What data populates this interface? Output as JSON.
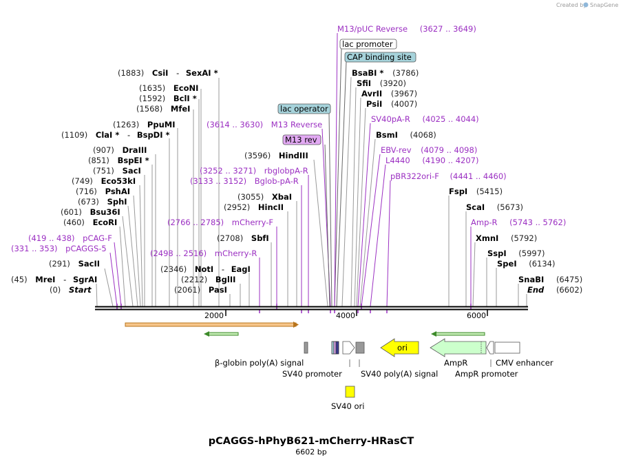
{
  "brand": {
    "created_by": "Created by",
    "name": "SnapGene"
  },
  "title": "pCAGGS-hPhyB621-mCherry-HRasCT",
  "length_label": "6602 bp",
  "colors": {
    "primer": "#9b2fc2",
    "enzyme": "#000000",
    "ori": "#ffff00",
    "ampr": "#ccffcc",
    "lac_operator": "#a6d3db",
    "cap_site": "#a6d3db",
    "m13rev_box": "#e2a9f3",
    "orf": "#f6c58a"
  },
  "ticks": [
    {
      "value": 2000,
      "label": "2000"
    },
    {
      "value": 4000,
      "label": "4000"
    },
    {
      "value": 6000,
      "label": "6000"
    }
  ],
  "left_labels": [
    {
      "pos": "(1883)",
      "name": "CsiI",
      "extra": "SexAI *"
    },
    {
      "pos": "(1635)",
      "name": "EcoNI"
    },
    {
      "pos": "(1592)",
      "name": "BclI *"
    },
    {
      "pos": "(1568)",
      "name": "MfeI"
    },
    {
      "pos": "(1263)",
      "name": "PpuMI"
    },
    {
      "pos": "(1109)",
      "name": "ClaI *",
      "extra": "BspDI *"
    },
    {
      "pos": "(907)",
      "name": "DraIII"
    },
    {
      "pos": "(851)",
      "name": "BspEI *"
    },
    {
      "pos": "(751)",
      "name": "SacI"
    },
    {
      "pos": "(749)",
      "name": "Eco53kI"
    },
    {
      "pos": "(716)",
      "name": "PshAI"
    },
    {
      "pos": "(673)",
      "name": "SphI"
    },
    {
      "pos": "(601)",
      "name": "Bsu36I"
    },
    {
      "pos": "(460)",
      "name": "EcoRI"
    },
    {
      "range": "(419 .. 438)",
      "name": "pCAG-F",
      "primer": true
    },
    {
      "range": "(331 .. 353)",
      "name": "pCAGGS-5",
      "primer": true
    },
    {
      "pos": "(291)",
      "name": "SacII"
    },
    {
      "pos": "(45)",
      "name": "MreI",
      "extra": "SgrAI"
    },
    {
      "pos": "(0)",
      "name": "Start",
      "italic": true
    }
  ],
  "mid_labels": [
    {
      "range": "(3614 .. 3630)",
      "name": "M13 Reverse",
      "primer": true
    },
    {
      "pos": "(3596)",
      "name": "HindIII"
    },
    {
      "range": "(3252 .. 3271)",
      "name": "rbglobpA-R",
      "primer": true
    },
    {
      "range": "(3133 .. 3152)",
      "name": "Bglob-pA-R",
      "primer": true
    },
    {
      "pos": "(3055)",
      "name": "XbaI"
    },
    {
      "pos": "(2952)",
      "name": "HincII"
    },
    {
      "range": "(2766 .. 2785)",
      "name": "mCherry-F",
      "primer": true
    },
    {
      "pos": "(2708)",
      "name": "SbfI"
    },
    {
      "range": "(2498 .. 2516)",
      "name": "mCherry-R",
      "primer": true
    },
    {
      "pos": "(2346)",
      "name": "NotI",
      "extra": "EagI"
    },
    {
      "pos": "(2212)",
      "name": "BglII"
    },
    {
      "pos": "(2061)",
      "name": "PasI"
    }
  ],
  "boxed_labels": [
    {
      "name": "lac operator"
    },
    {
      "name": "M13 rev"
    },
    {
      "name": "lac promoter"
    },
    {
      "name": "CAP binding site"
    }
  ],
  "right_labels": [
    {
      "name": "M13/pUC Reverse",
      "range": "(3627 .. 3649)",
      "primer": true
    },
    {
      "name": "BsaBI *",
      "pos": "(3786)"
    },
    {
      "name": "SfiI",
      "pos": "(3920)"
    },
    {
      "name": "AvrII",
      "pos": "(3967)"
    },
    {
      "name": "PsiI",
      "pos": "(4007)"
    },
    {
      "name": "SV40pA-R",
      "range": "(4025 .. 4044)",
      "primer": true
    },
    {
      "name": "BsmI",
      "pos": "(4068)"
    },
    {
      "name": "EBV-rev",
      "range": "(4079 .. 4098)",
      "primer": true
    },
    {
      "name": "L4440",
      "range": "(4190 .. 4207)",
      "primer": true
    },
    {
      "name": "pBR322ori-F",
      "range": "(4441 .. 4460)",
      "primer": true
    },
    {
      "name": "FspI",
      "pos": "(5415)"
    },
    {
      "name": "ScaI",
      "pos": "(5673)"
    },
    {
      "name": "Amp-R",
      "range": "(5743 .. 5762)",
      "primer": true
    },
    {
      "name": "XmnI",
      "pos": "(5792)"
    },
    {
      "name": "SspI",
      "pos": "(5997)"
    },
    {
      "name": "SpeI",
      "pos": "(6134)"
    },
    {
      "name": "SnaBI",
      "pos": "(6475)"
    },
    {
      "name": "End",
      "pos": "(6602)",
      "italic": true
    }
  ],
  "features": [
    {
      "name": "β-globin poly(A) signal"
    },
    {
      "name": "SV40 promoter"
    },
    {
      "name": "SV40 poly(A) signal"
    },
    {
      "name": "ori"
    },
    {
      "name": "AmpR"
    },
    {
      "name": "AmpR promoter"
    },
    {
      "name": "CMV enhancer"
    },
    {
      "name": "SV40 ori"
    }
  ]
}
